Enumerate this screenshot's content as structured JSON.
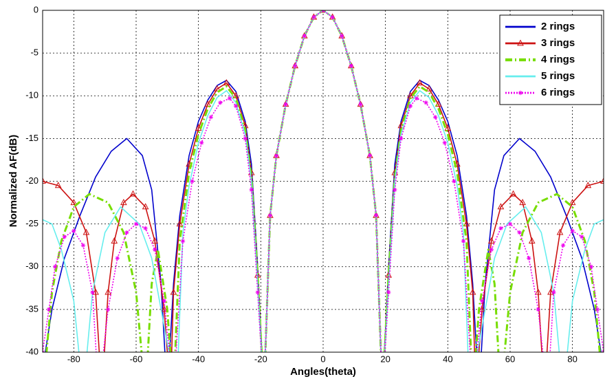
{
  "chart_data": {
    "type": "line",
    "x_label": "Angles(theta)",
    "y_label": "Normalized AF(dB)",
    "xlim": [
      -90,
      90
    ],
    "ylim": [
      -40,
      0
    ],
    "xticks": [
      -80,
      -60,
      -40,
      -20,
      0,
      20,
      40,
      60,
      80
    ],
    "yticks": [
      0,
      -5,
      -10,
      -15,
      -20,
      -25,
      -30,
      -35,
      -40
    ],
    "grid": true,
    "legend": "upper right",
    "series": [
      {
        "name": "2 rings",
        "color": "#0000cc",
        "style": "solid",
        "marker": "none",
        "x": [
          -90,
          -87,
          -83,
          -78,
          -73,
          -68,
          -63,
          -58,
          -55,
          -52,
          -50,
          -48,
          -46,
          -43,
          -40,
          -37,
          -34,
          -31,
          -28,
          -25,
          -23,
          -21,
          -19,
          -17,
          -15,
          -12,
          -9,
          -6,
          -3,
          0,
          3,
          6,
          9,
          12,
          15,
          17,
          19,
          21,
          23,
          25,
          28,
          31,
          34,
          37,
          40,
          43,
          46,
          48,
          50,
          52,
          55,
          58,
          63,
          68,
          73,
          78,
          83,
          87,
          90
        ],
        "values": [
          -42,
          -35,
          -29,
          -24,
          -19.5,
          -16.5,
          -15,
          -17,
          -21,
          -32,
          -45,
          -32,
          -24,
          -17,
          -13,
          -10.5,
          -8.8,
          -8.2,
          -9.5,
          -13,
          -18,
          -30,
          -45,
          -24,
          -17,
          -11,
          -6.5,
          -3,
          -0.8,
          0,
          -0.8,
          -3,
          -6.5,
          -11,
          -17,
          -24,
          -45,
          -30,
          -18,
          -13,
          -9.5,
          -8.2,
          -8.8,
          -10.5,
          -13,
          -17,
          -24,
          -32,
          -45,
          -32,
          -21,
          -17,
          -15,
          -16.5,
          -19.5,
          -24,
          -29,
          -35,
          -42
        ]
      },
      {
        "name": "3 rings",
        "color": "#cc1111",
        "style": "solid",
        "marker": "triangle",
        "x": [
          -90,
          -85,
          -80,
          -76,
          -73,
          -71,
          -69,
          -67,
          -64,
          -61,
          -57,
          -54,
          -51,
          -49,
          -48,
          -46,
          -43,
          -40,
          -37,
          -34,
          -31,
          -28,
          -25,
          -23,
          -21,
          -19,
          -17,
          -15,
          -12,
          -9,
          -6,
          -3,
          0,
          3,
          6,
          9,
          12,
          15,
          17,
          19,
          21,
          23,
          25,
          28,
          31,
          34,
          37,
          40,
          43,
          46,
          48,
          49,
          51,
          54,
          57,
          61,
          64,
          67,
          69,
          71,
          73,
          76,
          80,
          85,
          90
        ],
        "values": [
          -20,
          -20.5,
          -22.5,
          -26,
          -33,
          -45,
          -33,
          -27,
          -22.5,
          -21.5,
          -23,
          -27,
          -35,
          -45,
          -33,
          -25,
          -18,
          -13.8,
          -11,
          -9.2,
          -8.5,
          -10,
          -13.5,
          -19,
          -31,
          -45,
          -24,
          -17,
          -11,
          -6.5,
          -3,
          -0.8,
          0,
          -0.8,
          -3,
          -6.5,
          -11,
          -17,
          -24,
          -45,
          -31,
          -19,
          -13.5,
          -10,
          -8.5,
          -9.2,
          -11,
          -13.8,
          -18,
          -25,
          -33,
          -45,
          -35,
          -27,
          -23,
          -21.5,
          -22.5,
          -27,
          -33,
          -45,
          -33,
          -26,
          -22.5,
          -20.5,
          -20
        ]
      },
      {
        "name": "4 rings",
        "color": "#77dd00",
        "style": "dashdot",
        "marker": "none",
        "x": [
          -90,
          -87,
          -84,
          -80,
          -75,
          -69,
          -64,
          -60,
          -57,
          -55,
          -53,
          -50,
          -48,
          -46,
          -43,
          -40,
          -37,
          -34,
          -31,
          -28,
          -25,
          -23,
          -21,
          -19,
          -17,
          -15,
          -12,
          -9,
          -6,
          -3,
          0,
          3,
          6,
          9,
          12,
          15,
          17,
          19,
          21,
          23,
          25,
          28,
          31,
          34,
          37,
          40,
          43,
          46,
          48,
          50,
          53,
          55,
          57,
          60,
          64,
          69,
          75,
          80,
          84,
          87,
          90
        ],
        "values": [
          -45,
          -33,
          -27,
          -23,
          -21.5,
          -22.5,
          -26,
          -33,
          -45,
          -32,
          -28,
          -35,
          -45,
          -27,
          -19,
          -14.5,
          -11.5,
          -9.6,
          -8.9,
          -10.3,
          -14,
          -19.5,
          -31,
          -45,
          -24,
          -17,
          -11,
          -6.5,
          -3,
          -0.8,
          0,
          -0.8,
          -3,
          -6.5,
          -11,
          -17,
          -24,
          -45,
          -31,
          -19.5,
          -14,
          -10.3,
          -8.9,
          -9.6,
          -11.5,
          -14.5,
          -19,
          -27,
          -45,
          -35,
          -28,
          -32,
          -45,
          -33,
          -26,
          -22.5,
          -21.5,
          -23,
          -27,
          -33,
          -45
        ]
      },
      {
        "name": "5 rings",
        "color": "#66eeee",
        "style": "solid",
        "marker": "none",
        "x": [
          -90,
          -87,
          -84,
          -80,
          -77,
          -74,
          -70,
          -65,
          -59,
          -55,
          -52,
          -47,
          -45,
          -43,
          -40,
          -37,
          -34,
          -31,
          -28,
          -25,
          -23,
          -21,
          -19,
          -17,
          -15,
          -12,
          -9,
          -6,
          -3,
          0,
          3,
          6,
          9,
          12,
          15,
          17,
          19,
          21,
          23,
          25,
          28,
          31,
          34,
          37,
          40,
          43,
          45,
          47,
          52,
          55,
          59,
          65,
          70,
          74,
          77,
          80,
          84,
          87,
          90
        ],
        "values": [
          -24.5,
          -25,
          -28,
          -34,
          -45,
          -33,
          -26,
          -23,
          -25,
          -29,
          -35,
          -45,
          -26,
          -20.5,
          -15.5,
          -12.3,
          -10.2,
          -9.4,
          -10.8,
          -14.5,
          -20,
          -32,
          -45,
          -24,
          -17,
          -11,
          -6.5,
          -3,
          -0.8,
          0,
          -0.8,
          -3,
          -6.5,
          -11,
          -17,
          -24,
          -45,
          -32,
          -20,
          -14.5,
          -10.8,
          -9.4,
          -10.2,
          -12.3,
          -15.5,
          -20.5,
          -26,
          -45,
          -35,
          -29,
          -25,
          -23,
          -26,
          -33,
          -45,
          -34,
          -28,
          -25,
          -24.5
        ]
      },
      {
        "name": "6 rings",
        "color": "#ee00ee",
        "style": "dotted",
        "marker": "star",
        "x": [
          -90,
          -88,
          -86,
          -83,
          -80,
          -77,
          -74,
          -72,
          -69,
          -66,
          -63,
          -60,
          -57,
          -54,
          -51,
          -48,
          -45,
          -42,
          -39,
          -36,
          -33,
          -30,
          -28,
          -25,
          -23,
          -21,
          -19,
          -17,
          -15,
          -12,
          -9,
          -6,
          -3,
          0,
          3,
          6,
          9,
          12,
          15,
          17,
          19,
          21,
          23,
          25,
          28,
          30,
          33,
          36,
          39,
          42,
          45,
          48,
          51,
          54,
          57,
          60,
          63,
          66,
          69,
          72,
          74,
          77,
          80,
          83,
          86,
          88,
          90
        ],
        "values": [
          -40,
          -35,
          -30,
          -26.5,
          -25.8,
          -27.5,
          -33,
          -45,
          -35,
          -29,
          -26,
          -25,
          -25.5,
          -28,
          -34,
          -45,
          -27,
          -20,
          -15.5,
          -12.5,
          -10.8,
          -10.3,
          -11.2,
          -15,
          -21,
          -33,
          -45,
          -24,
          -17,
          -11,
          -6.5,
          -3,
          -0.8,
          0,
          -0.8,
          -3,
          -6.5,
          -11,
          -17,
          -24,
          -45,
          -33,
          -21,
          -15,
          -11.2,
          -10.3,
          -10.8,
          -12.5,
          -15.5,
          -20,
          -27,
          -45,
          -34,
          -28,
          -25.5,
          -25,
          -26,
          -29,
          -35,
          -45,
          -33,
          -27.5,
          -25.8,
          -26.5,
          -30,
          -35,
          -40
        ]
      }
    ]
  }
}
